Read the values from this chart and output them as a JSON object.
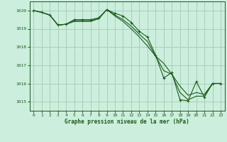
{
  "bg_color": "#cceedd",
  "grid_color": "#aaccbb",
  "line_color": "#1a5c1a",
  "marker_color": "#1a5c1a",
  "xlabel": "Graphe pression niveau de la mer (hPa)",
  "xlabel_color": "#1a5c1a",
  "tick_color": "#1a5c1a",
  "ylim": [
    1014.5,
    1020.5
  ],
  "xlim": [
    -0.5,
    23.5
  ],
  "yticks": [
    1015,
    1016,
    1017,
    1018,
    1019,
    1020
  ],
  "xticks": [
    0,
    1,
    2,
    3,
    4,
    5,
    6,
    7,
    8,
    9,
    10,
    11,
    12,
    13,
    14,
    15,
    16,
    17,
    18,
    19,
    20,
    21,
    22,
    23
  ],
  "series1_y": [
    1020.0,
    1019.9,
    1019.75,
    1019.2,
    1019.25,
    1019.5,
    1019.5,
    1019.5,
    1019.6,
    1020.05,
    1019.85,
    1019.7,
    1019.35,
    1018.85,
    1018.55,
    1017.55,
    1016.3,
    1016.6,
    1015.1,
    1015.05,
    1016.1,
    1015.25,
    1016.0,
    1016.0
  ],
  "series2_y": [
    1020.0,
    1019.9,
    1019.75,
    1019.2,
    1019.25,
    1019.4,
    1019.4,
    1019.4,
    1019.55,
    1020.05,
    1019.7,
    1019.4,
    1019.0,
    1018.55,
    1018.05,
    1017.5,
    1017.1,
    1016.5,
    1015.85,
    1015.35,
    1015.5,
    1015.4,
    1016.0,
    1016.0
  ],
  "series3_y": [
    1020.0,
    1019.9,
    1019.75,
    1019.2,
    1019.25,
    1019.45,
    1019.45,
    1019.45,
    1019.55,
    1020.05,
    1019.75,
    1019.5,
    1019.15,
    1018.7,
    1018.3,
    1017.5,
    1016.7,
    1016.5,
    1015.5,
    1015.1,
    1015.3,
    1015.3,
    1016.0,
    1016.0
  ]
}
